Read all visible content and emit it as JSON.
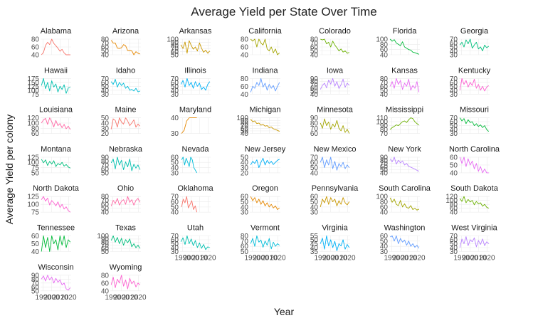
{
  "chart_data": {
    "type": "line",
    "title": "Average Yield per State Over Time",
    "xlabel": "Year",
    "ylabel": "Average Yield per colony",
    "x_ticks": [
      1990,
      2000,
      2010,
      2020
    ],
    "xlim": [
      1987,
      2023
    ],
    "facet_columns": 7,
    "grid": true,
    "legend": "none",
    "colors": [
      "#F8766D",
      "#E58700",
      "#C99800",
      "#A3A500",
      "#6BB100",
      "#00BA38",
      "#00BF7D",
      "#00C0AF",
      "#00BCD8",
      "#00B0F6",
      "#619CFF",
      "#B983FF",
      "#E76BF3",
      "#FD61D1",
      "#FF67A4"
    ],
    "panels": [
      {
        "state": "Alabama",
        "yticks": [
          40,
          60,
          80
        ],
        "values": [
          38,
          46,
          64,
          72,
          66,
          80,
          69,
          63,
          57,
          49,
          54,
          45,
          40,
          40,
          38
        ]
      },
      {
        "state": "Arizona",
        "yticks": [
          40,
          50,
          60,
          70,
          80
        ],
        "values": [
          77,
          70,
          70,
          57,
          56,
          58,
          66,
          63,
          51,
          51,
          50,
          37,
          48,
          44,
          42
        ]
      },
      {
        "state": "Arkansas",
        "yticks": [
          50,
          60,
          70,
          80,
          90,
          100
        ],
        "values": [
          82,
          70,
          91,
          55,
          95,
          80,
          68,
          75,
          62,
          88,
          71,
          58,
          65,
          55,
          62
        ]
      },
      {
        "state": "California",
        "yticks": [
          40,
          60,
          80
        ],
        "values": [
          90,
          75,
          85,
          60,
          80,
          70,
          65,
          80,
          55,
          50,
          60,
          45,
          55,
          40,
          45
        ]
      },
      {
        "state": "Colorado",
        "yticks": [
          40,
          50,
          60,
          70,
          80
        ],
        "values": [
          85,
          78,
          82,
          68,
          72,
          60,
          75,
          65,
          58,
          50,
          55,
          47,
          50,
          44,
          46
        ]
      },
      {
        "state": "Florida",
        "yticks": [
          40,
          60,
          80,
          100
        ],
        "values": [
          100,
          92,
          98,
          85,
          80,
          75,
          90,
          70,
          65,
          60,
          58,
          50,
          48,
          45,
          42
        ]
      },
      {
        "state": "Georgia",
        "yticks": [
          30,
          40,
          50,
          60,
          70
        ],
        "values": [
          55,
          62,
          50,
          68,
          58,
          72,
          47,
          55,
          62,
          45,
          50,
          40,
          55,
          48,
          52
        ]
      },
      {
        "state": "Hawaii",
        "yticks": [
          75,
          100,
          125,
          150,
          175
        ],
        "values": [
          130,
          175,
          110,
          150,
          95,
          160,
          120,
          140,
          88,
          125,
          105,
          135,
          80,
          115,
          118
        ]
      },
      {
        "state": "Idaho",
        "yticks": [
          30,
          40,
          50,
          60,
          70
        ],
        "values": [
          62,
          55,
          68,
          48,
          60,
          52,
          58,
          45,
          50,
          40,
          42,
          38,
          45,
          36,
          38
        ]
      },
      {
        "state": "Illinois",
        "yticks": [
          30,
          40,
          50,
          60,
          70
        ],
        "values": [
          55,
          65,
          48,
          70,
          52,
          60,
          45,
          62,
          50,
          58,
          42,
          48,
          40,
          55,
          62
        ]
      },
      {
        "state": "Indiana",
        "yticks": [
          40,
          60,
          80
        ],
        "values": [
          45,
          60,
          55,
          70,
          62,
          80,
          58,
          68,
          50,
          65,
          55,
          62,
          48,
          60,
          70
        ]
      },
      {
        "state": "Iowa",
        "yticks": [
          40,
          50,
          60,
          70,
          80,
          90
        ],
        "values": [
          55,
          68,
          75,
          60,
          85,
          72,
          90,
          65,
          80,
          58,
          70,
          88,
          62,
          75,
          68
        ]
      },
      {
        "state": "Kansas",
        "yticks": [
          40,
          50,
          60,
          70,
          80
        ],
        "values": [
          60,
          72,
          55,
          80,
          65,
          75,
          52,
          68,
          60,
          78,
          50,
          62,
          55,
          72,
          45
        ]
      },
      {
        "state": "Kentucky",
        "yticks": [
          30,
          40,
          50,
          60,
          70
        ],
        "values": [
          40,
          70,
          55,
          65,
          48,
          60,
          52,
          68,
          45,
          55,
          40,
          50,
          38,
          48,
          52
        ]
      },
      {
        "state": "Louisiana",
        "yticks": [
          60,
          80,
          100,
          120
        ],
        "values": [
          100,
          112,
          118,
          95,
          120,
          105,
          85,
          110,
          90,
          98,
          82,
          95,
          78,
          88,
          75
        ]
      },
      {
        "state": "Maine",
        "yticks": [
          20,
          30,
          40,
          50
        ],
        "values": [
          28,
          48,
          45,
          32,
          52,
          42,
          38,
          50,
          44,
          35,
          40,
          46,
          32,
          38,
          34
        ]
      },
      {
        "state": "Maryland",
        "yticks": [
          30,
          40
        ],
        "values": [
          30,
          32,
          38,
          42,
          40,
          43,
          45
        ]
      },
      {
        "state": "Michigan",
        "yticks": [
          40,
          50,
          60,
          70,
          80,
          90,
          100
        ],
        "values": [
          95,
          85,
          88,
          78,
          80,
          72,
          75,
          68,
          70,
          62,
          65,
          58,
          55,
          52,
          48
        ]
      },
      {
        "state": "Minnesota",
        "yticks": [
          60,
          70,
          80,
          90
        ],
        "values": [
          80,
          70,
          88,
          75,
          82,
          68,
          78,
          72,
          85,
          70,
          65,
          75,
          62,
          68,
          60
        ]
      },
      {
        "state": "Mississippi",
        "yticks": [
          70,
          80,
          90,
          100,
          110
        ],
        "values": [
          80,
          85,
          88,
          92,
          90,
          95,
          100,
          102,
          98,
          105,
          110,
          108,
          100,
          95,
          92
        ]
      },
      {
        "state": "Missouri",
        "yticks": [
          30,
          40,
          50,
          60,
          70
        ],
        "values": [
          70,
          62,
          68,
          55,
          65,
          58,
          60,
          50,
          55,
          48,
          52,
          45,
          50,
          40,
          35
        ]
      },
      {
        "state": "Montana",
        "yticks": [
          50,
          75,
          100,
          125
        ],
        "values": [
          115,
          98,
          112,
          85,
          105,
          92,
          108,
          80,
          95,
          88,
          100,
          82,
          90,
          78,
          72
        ]
      },
      {
        "state": "Nebraska",
        "yticks": [
          50,
          60,
          70,
          80,
          90
        ],
        "values": [
          75,
          85,
          60,
          90,
          70,
          82,
          58,
          78,
          65,
          85,
          55,
          72,
          62,
          70,
          58
        ]
      },
      {
        "state": "Nevada",
        "yticks": [
          30,
          40,
          50,
          60
        ],
        "values": [
          55,
          62,
          45,
          58,
          50,
          42,
          60,
          55,
          40,
          35,
          30
        ]
      },
      {
        "state": "New Jersey",
        "yticks": [
          20,
          30,
          40,
          50
        ],
        "values": [
          35,
          42,
          38,
          45,
          30,
          40,
          48,
          35,
          44,
          38,
          42,
          36,
          40,
          44,
          46
        ]
      },
      {
        "state": "New Mexico",
        "yticks": [
          40,
          50,
          60,
          70
        ],
        "values": [
          60,
          72,
          50,
          65,
          55,
          70,
          48,
          62,
          45,
          58,
          52,
          60,
          48,
          55,
          50
        ]
      },
      {
        "state": "New York",
        "yticks": [
          40,
          50,
          60,
          70,
          80,
          90
        ],
        "values": [
          85,
          75,
          90,
          68,
          80,
          72,
          78,
          65,
          70,
          60,
          58,
          55,
          52,
          48,
          45
        ]
      },
      {
        "state": "North Carolina",
        "yticks": [
          40,
          50,
          60
        ],
        "values": [
          60,
          52,
          64,
          48,
          58,
          50,
          55,
          45,
          52,
          42,
          48,
          40,
          45,
          38,
          40
        ]
      },
      {
        "state": "North Dakota",
        "yticks": [
          75,
          100,
          125
        ],
        "values": [
          115,
          128,
          110,
          120,
          98,
          112,
          105,
          95,
          108,
          90,
          100,
          85,
          92,
          80,
          75
        ]
      },
      {
        "state": "Ohio",
        "yticks": [
          40,
          50,
          60,
          70,
          80
        ],
        "values": [
          55,
          70,
          62,
          75,
          58,
          68,
          72,
          60,
          80,
          65,
          72,
          58,
          70,
          75,
          65
        ]
      },
      {
        "state": "Oklahoma",
        "yticks": [
          40,
          50,
          60,
          70
        ],
        "values": [
          50,
          65,
          58,
          70,
          48,
          55,
          62,
          45,
          52,
          40
        ]
      },
      {
        "state": "Oregon",
        "yticks": [
          30,
          40,
          50,
          60
        ],
        "values": [
          60,
          52,
          58,
          48,
          55,
          45,
          52,
          42,
          48,
          40,
          45,
          38,
          42,
          35,
          38
        ]
      },
      {
        "state": "Pennsylvania",
        "yticks": [
          30,
          40,
          50,
          60
        ],
        "values": [
          40,
          55,
          48,
          62,
          45,
          58,
          50,
          55,
          42,
          52,
          45,
          58,
          48,
          44,
          50
        ]
      },
      {
        "state": "South Carolina",
        "yticks": [
          40,
          60,
          80,
          100
        ],
        "values": [
          95,
          78,
          90,
          70,
          65,
          85,
          60,
          72,
          58,
          55,
          65,
          50,
          55,
          48,
          52
        ]
      },
      {
        "state": "South Dakota",
        "yticks": [
          40,
          60,
          80,
          100,
          120
        ],
        "values": [
          110,
          95,
          120,
          88,
          105,
          92,
          100,
          78,
          95,
          82,
          88,
          70,
          80,
          65,
          60
        ]
      },
      {
        "state": "Tennessee",
        "yticks": [
          40,
          50,
          60
        ],
        "values": [
          35,
          62,
          45,
          58,
          40,
          65,
          50,
          55,
          42,
          60,
          48,
          62,
          45,
          55,
          52
        ]
      },
      {
        "state": "Texas",
        "yticks": [
          50,
          60,
          70,
          80,
          90,
          100
        ],
        "values": [
          85,
          100,
          80,
          95,
          75,
          92,
          70,
          88,
          78,
          90,
          65,
          75,
          62,
          70,
          60
        ]
      },
      {
        "state": "Utah",
        "yticks": [
          30,
          40,
          50,
          60,
          70
        ],
        "values": [
          55,
          65,
          48,
          70,
          50,
          62,
          45,
          58,
          40,
          52,
          38,
          48,
          35,
          42,
          40
        ]
      },
      {
        "state": "Vermont",
        "yticks": [
          50,
          60,
          70,
          80
        ],
        "values": [
          65,
          75,
          60,
          80,
          68,
          72,
          58,
          70,
          62,
          75,
          55,
          68,
          60,
          65,
          62
        ]
      },
      {
        "state": "Virginia",
        "yticks": [
          35,
          40,
          45,
          50,
          55
        ],
        "values": [
          45,
          52,
          38,
          55,
          42,
          50,
          40,
          48,
          36,
          45,
          42,
          50,
          38,
          44,
          40
        ]
      },
      {
        "state": "Washington",
        "yticks": [
          30,
          40,
          50,
          60
        ],
        "values": [
          58,
          62,
          50,
          60,
          45,
          55,
          48,
          52,
          42,
          50,
          40,
          45,
          38,
          42,
          36
        ]
      },
      {
        "state": "West Virginia",
        "yticks": [
          30,
          40,
          50,
          60,
          70
        ],
        "values": [
          40,
          62,
          50,
          68,
          45,
          60,
          55,
          65,
          42,
          58,
          48,
          62,
          45,
          55,
          50
        ]
      },
      {
        "state": "Wisconsin",
        "yticks": [
          50,
          60,
          70,
          80,
          90
        ],
        "values": [
          80,
          88,
          75,
          92,
          78,
          85,
          70,
          82,
          72,
          78,
          65,
          70,
          55,
          52,
          58
        ]
      },
      {
        "state": "Wyoming",
        "yticks": [
          40,
          60,
          80
        ],
        "values": [
          55,
          75,
          48,
          70,
          60,
          80,
          52,
          68,
          45,
          72,
          58,
          65,
          50,
          60,
          55
        ]
      }
    ]
  }
}
